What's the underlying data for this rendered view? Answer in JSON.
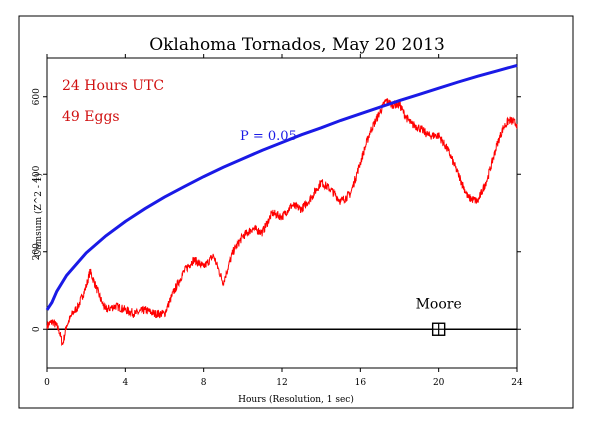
{
  "chart_data": {
    "type": "line",
    "title": "Oklahoma Tornados, May 20 2013",
    "xlabel": "Hours (Resolution, 1 sec)",
    "ylabel": "Cumsum (Z^2 - 1)",
    "xlim": [
      0,
      24
    ],
    "ylim": [
      -100,
      700
    ],
    "x_ticks": [
      "0",
      "4",
      "8",
      "12",
      "16",
      "20",
      "24"
    ],
    "y_ticks": [
      "0",
      "200",
      "400",
      "600"
    ],
    "annotations": {
      "hours_utc": "24 Hours UTC",
      "eggs": "49 Eggs",
      "p_label": "P = 0.05",
      "event_label": "Moore",
      "event_hour": 20,
      "event_value": 0
    },
    "colors": {
      "cumsum": "#ff0000",
      "p_curve": "#1a1ae6",
      "annotation_text": "#d01010",
      "p_text": "#1a1ae6",
      "axis": "#000000"
    },
    "series": [
      {
        "role": "cumsum",
        "x": [
          0,
          0.3,
          0.6,
          0.8,
          1.0,
          1.3,
          1.6,
          2.0,
          2.2,
          2.5,
          2.8,
          3.0,
          3.5,
          4.0,
          4.5,
          5.0,
          5.5,
          6.0,
          6.5,
          7.0,
          7.5,
          8.0,
          8.5,
          9.0,
          9.5,
          10.0,
          10.5,
          11.0,
          11.5,
          12.0,
          12.5,
          13.0,
          13.5,
          14.0,
          14.5,
          15.0,
          15.5,
          16.0,
          16.5,
          17.0,
          17.3,
          17.6,
          18.0,
          18.3,
          18.6,
          19.0,
          19.5,
          20.0,
          20.5,
          21.0,
          21.5,
          22.0,
          22.5,
          23.0,
          23.3,
          23.6,
          24.0
        ],
        "values": [
          10,
          20,
          0,
          -40,
          10,
          40,
          60,
          110,
          150,
          110,
          70,
          50,
          60,
          50,
          40,
          50,
          40,
          40,
          100,
          150,
          180,
          160,
          190,
          120,
          200,
          240,
          260,
          250,
          300,
          290,
          320,
          310,
          340,
          380,
          360,
          330,
          350,
          430,
          510,
          560,
          590,
          580,
          580,
          550,
          530,
          520,
          500,
          500,
          460,
          400,
          340,
          330,
          390,
          480,
          520,
          540,
          530
        ]
      },
      {
        "role": "p_curve",
        "name": "P = 0.05",
        "x": [
          0,
          0.25,
          0.5,
          1,
          2,
          3,
          4,
          5,
          6,
          7,
          8,
          9,
          10,
          11,
          12,
          13,
          14,
          15,
          16,
          17,
          18,
          19,
          20,
          21,
          22,
          23,
          24
        ],
        "values": [
          50,
          69,
          98,
          139,
          197,
          241,
          278,
          311,
          341,
          368,
          394,
          418,
          440,
          462,
          482,
          502,
          520,
          539,
          556,
          573,
          590,
          606,
          622,
          638,
          653,
          667,
          681
        ]
      }
    ],
    "grid": false,
    "legend": "none"
  }
}
